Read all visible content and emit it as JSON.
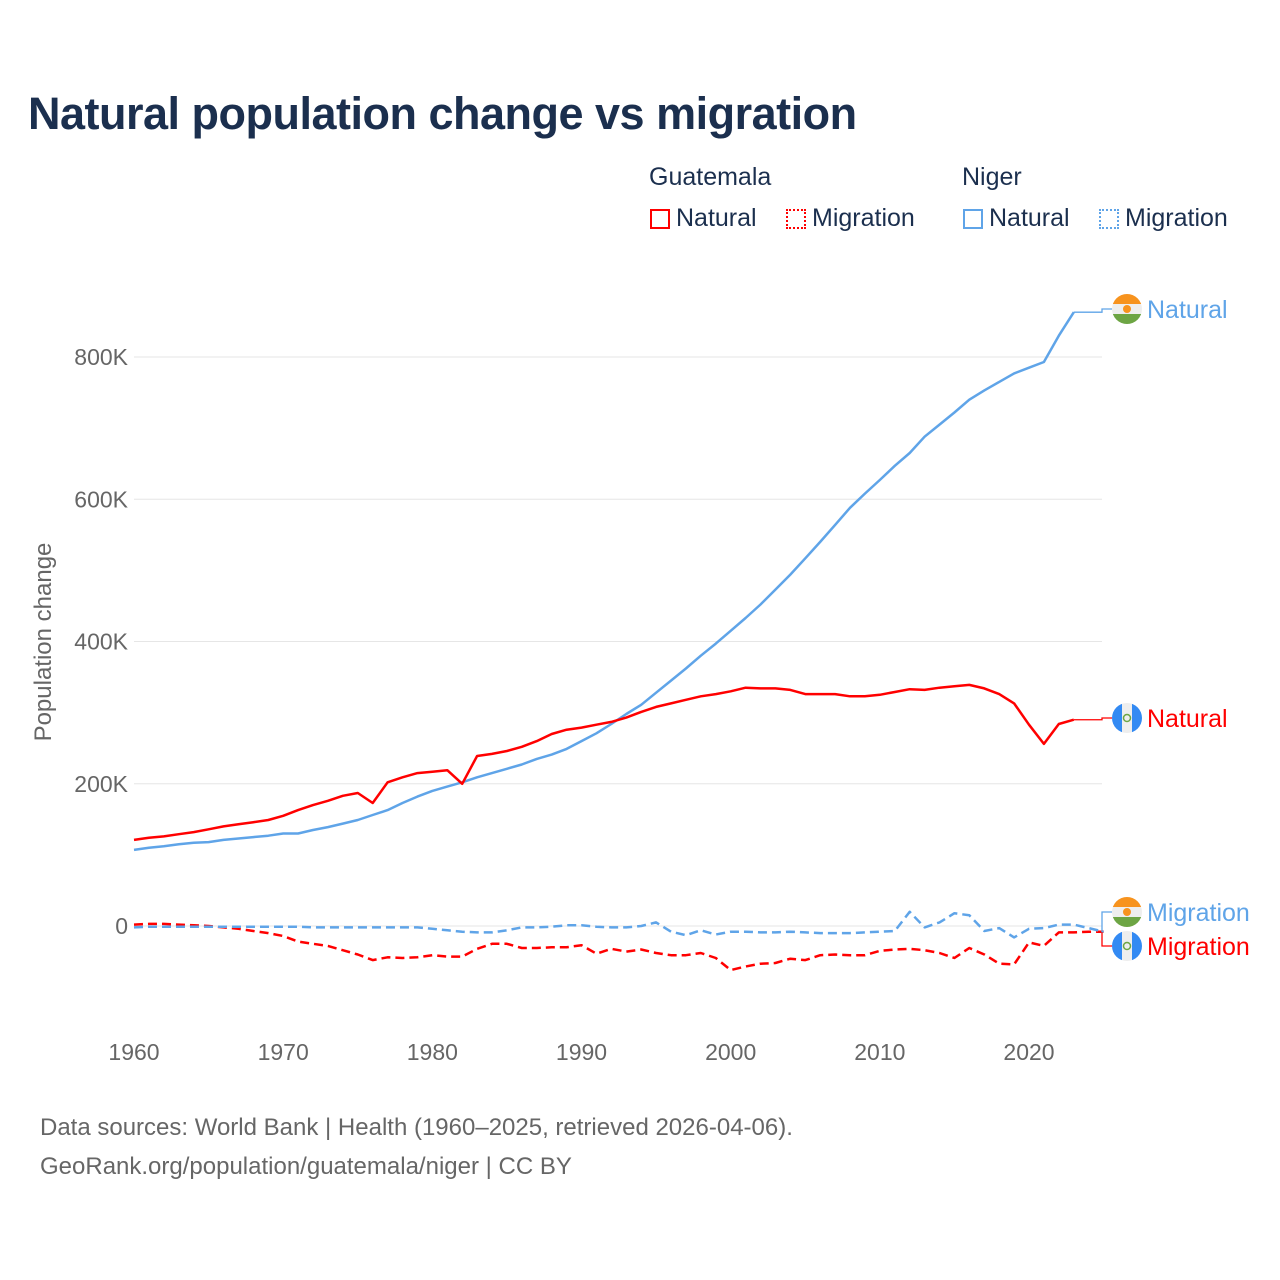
{
  "chart_data": {
    "type": "line",
    "title": "Natural population change vs migration",
    "xlabel": "",
    "ylabel": "Population change",
    "xlim": [
      1960,
      2025
    ],
    "ylim": [
      -110000,
      900000
    ],
    "x_ticks": [
      1960,
      1970,
      1980,
      1990,
      2000,
      2010,
      2020
    ],
    "x_tick_labels": [
      "1960",
      "1970",
      "1980",
      "1990",
      "2000",
      "2010",
      "2020"
    ],
    "y_ticks": [
      0,
      200000,
      400000,
      600000,
      800000
    ],
    "y_tick_labels": [
      "0",
      "200K",
      "400K",
      "600K",
      "800K"
    ],
    "grid": true,
    "legend": {
      "placement": "top-right",
      "groups": [
        {
          "country": "Guatemala",
          "items": [
            "Natural",
            "Migration"
          ]
        },
        {
          "country": "Niger",
          "items": [
            "Natural",
            "Migration"
          ]
        }
      ]
    },
    "series": [
      {
        "name": "Guatemala Natural",
        "country": "Guatemala",
        "kind": "Natural",
        "color": "#ff0000",
        "style": "solid",
        "label": "Natural",
        "start_year": 1960,
        "values": [
          121,
          124,
          126,
          129,
          132,
          136,
          140,
          143,
          146,
          149,
          155,
          163,
          170,
          176,
          183,
          187,
          173,
          202,
          209,
          215,
          217,
          219,
          200,
          239,
          242,
          246,
          252,
          260,
          270,
          276,
          279,
          283,
          287,
          293,
          301,
          308,
          313,
          318,
          323,
          326,
          330,
          335,
          334,
          334,
          332,
          326,
          326,
          326,
          323,
          323,
          325,
          329,
          333,
          332,
          335,
          337,
          339,
          334,
          326,
          313,
          283,
          256,
          284,
          290
        ]
      },
      {
        "name": "Niger Natural",
        "country": "Niger",
        "kind": "Natural",
        "color": "#5fa4e8",
        "style": "solid",
        "label": "Natural",
        "start_year": 1960,
        "values": [
          107,
          110,
          112,
          115,
          117,
          118,
          121,
          123,
          125,
          127,
          130,
          130,
          135,
          139,
          144,
          149,
          156,
          163,
          173,
          182,
          190,
          196,
          202,
          209,
          215,
          221,
          227,
          235,
          241,
          249,
          260,
          271,
          284,
          298,
          311,
          328,
          345,
          362,
          380,
          397,
          415,
          433,
          452,
          473,
          494,
          517,
          540,
          564,
          588,
          608,
          627,
          647,
          665,
          688,
          705,
          722,
          740,
          753,
          765,
          777,
          785,
          793,
          830,
          863
        ]
      },
      {
        "name": "Guatemala Migration",
        "country": "Guatemala",
        "kind": "Migration",
        "color": "#ff0000",
        "style": "dashed",
        "label": "Migration",
        "start_year": 1960,
        "values": [
          2,
          3,
          3,
          2,
          1,
          0,
          -2,
          -4,
          -7,
          -10,
          -14,
          -22,
          -25,
          -28,
          -34,
          -40,
          -48,
          -44,
          -45,
          -44,
          -41,
          -43,
          -43,
          -32,
          -25,
          -25,
          -31,
          -31,
          -30,
          -30,
          -27,
          -39,
          -32,
          -36,
          -33,
          -38,
          -41,
          -41,
          -38,
          -45,
          -62,
          -57,
          -53,
          -52,
          -46,
          -48,
          -41,
          -40,
          -41,
          -41,
          -35,
          -33,
          -32,
          -34,
          -38,
          -45,
          -31,
          -40,
          -53,
          -54,
          -23,
          -28,
          -9,
          -9,
          -8,
          -8
        ]
      },
      {
        "name": "Niger Migration",
        "country": "Niger",
        "kind": "Migration",
        "color": "#5fa4e8",
        "style": "dashed",
        "label": "Migration",
        "start_year": 1960,
        "values": [
          -2,
          -1,
          -1,
          -1,
          -1,
          -1,
          -1,
          -1,
          -1,
          -1,
          -1,
          -1,
          -2,
          -2,
          -2,
          -2,
          -2,
          -2,
          -2,
          -2,
          -4,
          -6,
          -8,
          -9,
          -9,
          -6,
          -2,
          -2,
          -1,
          1,
          1,
          -1,
          -2,
          -2,
          0,
          5,
          -8,
          -13,
          -6,
          -12,
          -8,
          -8,
          -9,
          -9,
          -8,
          -9,
          -10,
          -10,
          -10,
          -9,
          -8,
          -7,
          20,
          -2,
          5,
          18,
          15,
          -7,
          -3,
          -16,
          -4,
          -3,
          2,
          2,
          -3,
          -8
        ]
      }
    ],
    "value_unit": "thousands"
  },
  "legend": {
    "guatemala": "Guatemala",
    "niger": "Niger",
    "natural": "Natural",
    "migration": "Migration"
  },
  "source": {
    "line1": "Data sources: World Bank | Health (1960–2025, retrieved 2026-04-06).",
    "line2": "GeoRank.org/population/guatemala/niger | CC BY"
  }
}
